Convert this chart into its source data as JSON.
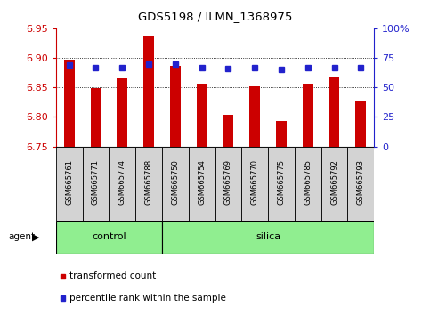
{
  "title": "GDS5198 / ILMN_1368975",
  "samples": [
    "GSM665761",
    "GSM665771",
    "GSM665774",
    "GSM665788",
    "GSM665750",
    "GSM665754",
    "GSM665769",
    "GSM665770",
    "GSM665775",
    "GSM665785",
    "GSM665792",
    "GSM665793"
  ],
  "bar_values": [
    6.897,
    6.849,
    6.865,
    6.936,
    6.886,
    6.856,
    6.803,
    6.852,
    6.793,
    6.856,
    6.867,
    6.828
  ],
  "percentile_values": [
    69,
    67,
    67,
    70,
    70,
    67,
    66,
    67,
    65,
    67,
    67,
    67
  ],
  "ymin": 6.75,
  "ymax": 6.95,
  "yticks": [
    6.75,
    6.8,
    6.85,
    6.9,
    6.95
  ],
  "right_yticks": [
    0,
    25,
    50,
    75,
    100
  ],
  "bar_color": "#CC0000",
  "dot_color": "#2222CC",
  "n_control": 4,
  "n_silica": 8,
  "control_label": "control",
  "silica_label": "silica",
  "agent_label": "agent",
  "legend_bar_label": "transformed count",
  "legend_dot_label": "percentile rank within the sample",
  "group_color": "#90EE90",
  "left_axis_color": "#CC0000",
  "right_axis_color": "#2222CC",
  "bar_width": 0.4,
  "dot_size": 5
}
